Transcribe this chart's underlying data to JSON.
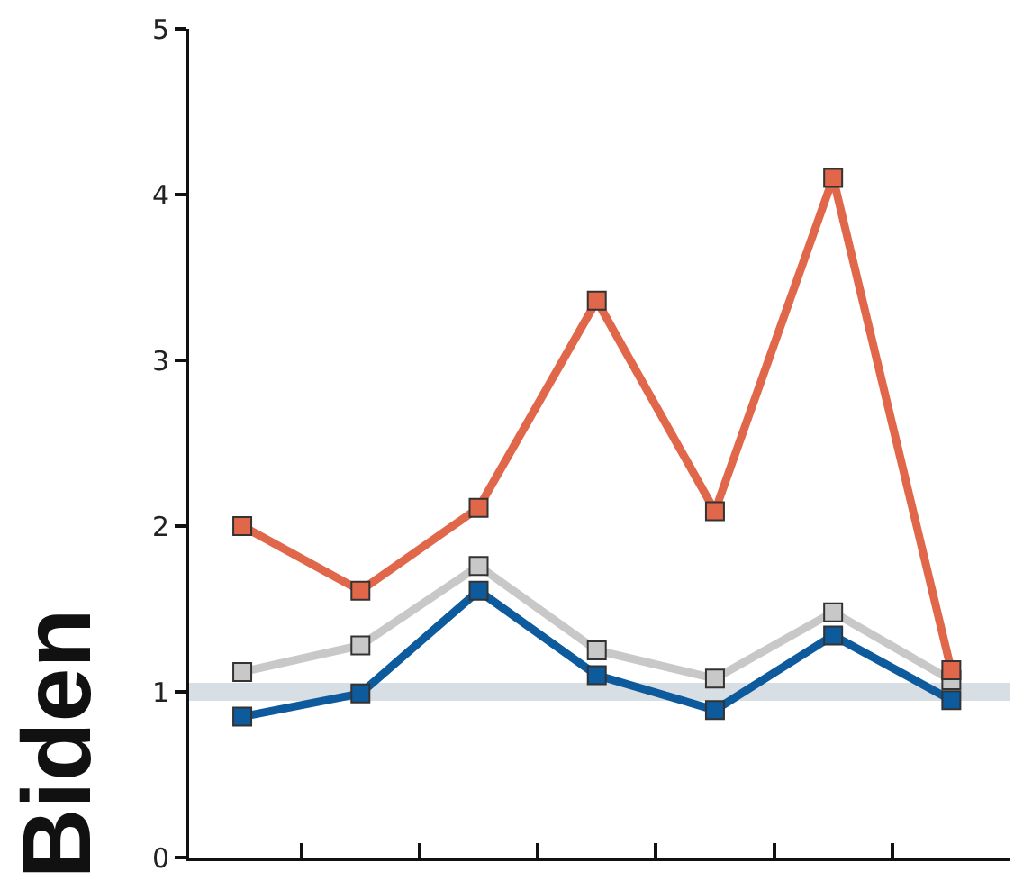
{
  "chart_data": {
    "type": "line",
    "ylabel": "Biden",
    "categories": [
      null,
      null,
      null,
      null,
      null,
      null,
      null
    ],
    "series": [
      {
        "color": "#e0674a",
        "values": [
          2.0,
          1.61,
          2.11,
          3.36,
          2.09,
          4.1,
          1.13
        ]
      },
      {
        "color": "#c8c8c8",
        "values": [
          1.12,
          1.28,
          1.76,
          1.25,
          1.08,
          1.48,
          1.07
        ]
      },
      {
        "color": "#0d5a9c",
        "values": [
          0.85,
          0.99,
          1.61,
          1.1,
          0.89,
          1.34,
          0.95
        ]
      }
    ],
    "ylim": [
      0,
      5
    ],
    "yticks": [
      0,
      1,
      2,
      3,
      4,
      5
    ],
    "marker": "square",
    "line_style": "solid",
    "ref_lines": [
      {
        "axis": "y",
        "value": 1,
        "color": "#d7dee4"
      }
    ]
  }
}
